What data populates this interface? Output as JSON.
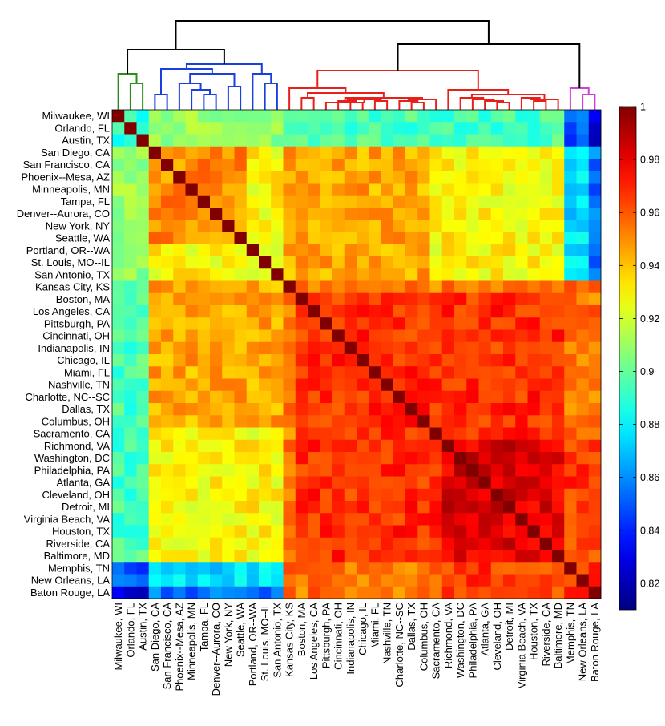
{
  "chart_data": {
    "type": "heatmap",
    "title": "",
    "xlabel": "",
    "ylabel": "",
    "labels": [
      "Milwaukee, WI",
      "Orlando, FL",
      "Austin, TX",
      "San Diego, CA",
      "San Francisco, CA",
      "Phoenix--Mesa, AZ",
      "Minneapolis, MN",
      "Tampa, FL",
      "Denver--Aurora, CO",
      "New York, NY",
      "Seattle, WA",
      "Portland, OR--WA",
      "St. Louis, MO--IL",
      "San Antonio, TX",
      "Kansas City, KS",
      "Boston, MA",
      "Los Angeles, CA",
      "Pittsburgh, PA",
      "Cincinnati, OH",
      "Indianapolis, IN",
      "Chicago, IL",
      "Miami, FL",
      "Nashville, TN",
      "Charlotte, NC--SC",
      "Dallas, TX",
      "Columbus, OH",
      "Sacramento, CA",
      "Richmond, VA",
      "Washington, DC",
      "Philadelphia, PA",
      "Atlanta, GA",
      "Cleveland, OH",
      "Detroit, MI",
      "Virginia Beach, VA",
      "Houston, TX",
      "Riverside, CA",
      "Baltimore, MD",
      "Memphis, TN",
      "New Orleans, LA",
      "Baton Rouge, LA"
    ],
    "cluster_groups": [
      {
        "name": "green",
        "color": "#2e8b1e",
        "members": [
          0,
          1,
          2
        ]
      },
      {
        "name": "blue",
        "color": "#1a3fe0",
        "members": [
          3,
          4,
          5,
          6,
          7,
          8,
          9,
          10,
          11,
          12,
          13
        ]
      },
      {
        "name": "red",
        "color": "#e8201a",
        "members": [
          14,
          15,
          16,
          17,
          18,
          19,
          20,
          21,
          22,
          23,
          24,
          25,
          26,
          27,
          28,
          29,
          30,
          31,
          32,
          33,
          34,
          35,
          36
        ]
      },
      {
        "name": "magenta",
        "color": "#d040d8",
        "members": [
          37,
          38,
          39
        ]
      }
    ],
    "colorbar": {
      "min": 0.81,
      "max": 1.0,
      "ticks": [
        1,
        0.98,
        0.96,
        0.94,
        0.92,
        0.9,
        0.88,
        0.86,
        0.84,
        0.82
      ],
      "tick_labels": [
        "1",
        "0.98",
        "0.96",
        "0.94",
        "0.92",
        "0.9",
        "0.88",
        "0.86",
        "0.84",
        "0.82"
      ],
      "colormap": "jet"
    },
    "matrix_description": "Correlation matrix, diagonal = 1; values estimated from colors and generated per-cell from cluster structure"
  }
}
